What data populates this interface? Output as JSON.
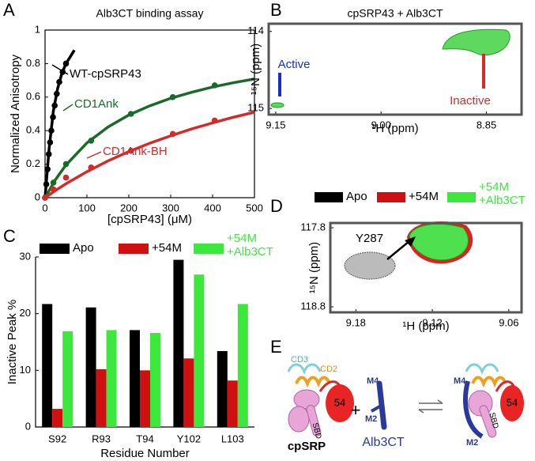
{
  "panel_labels": [
    "A",
    "B",
    "C",
    "D",
    "E"
  ],
  "chart_data": [
    {
      "type": "line",
      "title": "Alb3CT binding assay",
      "x_label": "[cpSRP43] (μM)",
      "y_label": "Normalized Anisotropy",
      "xlim": [
        0,
        500
      ],
      "xticks": [
        0,
        100,
        200,
        300,
        400,
        500
      ],
      "ylim": [
        0,
        1
      ],
      "yticks": [
        0,
        0.2,
        0.4,
        0.6,
        0.8,
        1
      ],
      "series": [
        {
          "name": "WT-cpSRP43",
          "color": "#000000",
          "x": [
            0,
            3,
            6,
            9,
            12,
            15,
            19,
            23,
            28,
            34,
            42,
            50
          ],
          "values": [
            0,
            0.08,
            0.17,
            0.26,
            0.33,
            0.4,
            0.48,
            0.55,
            0.62,
            0.69,
            0.75,
            0.8
          ],
          "fit_x": [
            0,
            10,
            20,
            30,
            40,
            50,
            60,
            70
          ],
          "fit_values": [
            0,
            0.3,
            0.52,
            0.65,
            0.74,
            0.8,
            0.84,
            0.88
          ]
        },
        {
          "name": "CD1Ank",
          "color": "#1a6b2a",
          "x": [
            0,
            20,
            50,
            110,
            205,
            305,
            405
          ],
          "values": [
            0,
            0.09,
            0.2,
            0.34,
            0.5,
            0.6,
            0.67
          ],
          "fit_x": [
            0,
            25,
            50,
            100,
            150,
            200,
            250,
            300,
            350,
            400,
            450,
            500
          ],
          "fit_values": [
            0,
            0.108,
            0.195,
            0.327,
            0.421,
            0.493,
            0.548,
            0.593,
            0.629,
            0.66,
            0.686,
            0.708
          ]
        },
        {
          "name": "CD1Ank-BH",
          "color": "#d42a2a",
          "x": [
            0,
            20,
            50,
            110,
            205,
            305,
            405
          ],
          "values": [
            0,
            0.05,
            0.12,
            0.18,
            0.28,
            0.38,
            0.46
          ],
          "fit_x": [
            0,
            25,
            50,
            100,
            150,
            200,
            250,
            300,
            350,
            400,
            450,
            500
          ],
          "fit_values": [
            0,
            0.043,
            0.083,
            0.155,
            0.219,
            0.275,
            0.325,
            0.369,
            0.41,
            0.446,
            0.48,
            0.51
          ]
        }
      ]
    },
    {
      "type": "contour",
      "title": "cpSRP43 + Alb3CT",
      "x_label": "¹H (ppm)",
      "y_label": "¹⁵N (ppm)",
      "xlim": [
        9.16,
        8.8
      ],
      "xticks": [
        9.15,
        {
          "value": 9,
          "label": "9.00"
        },
        8.85
      ],
      "ylim": [
        115.08,
        113.9
      ],
      "yticks": [
        114,
        115
      ],
      "annotations": [
        "Active",
        "Inactive"
      ],
      "annotation_colors": [
        "#1530c8",
        "#d42a2a"
      ]
    },
    {
      "type": "bar",
      "x_label": "Residue Number",
      "y_label": "Inactive Peak %",
      "categories": [
        "S92",
        "R93",
        "T94",
        "Y102",
        "L103"
      ],
      "ylim": [
        0,
        30
      ],
      "yticks": [
        0,
        10,
        20,
        30
      ],
      "series": [
        {
          "name": "Apo",
          "color": "#000000",
          "values": [
            21.7,
            21.1,
            17.1,
            29.5,
            13.4
          ]
        },
        {
          "name": "+54M",
          "color": "#d01010",
          "values": [
            3.2,
            10.2,
            10,
            12.1,
            8.2
          ]
        },
        {
          "name": "+54M\n+Alb3CT",
          "color": "#3de83d",
          "values": [
            16.9,
            17.1,
            16.6,
            26.9,
            21.7
          ]
        }
      ]
    },
    {
      "type": "contour",
      "x_label": "¹H (ppm)",
      "y_label": "¹⁵N (ppm)",
      "xlim": [
        9.2,
        9.05
      ],
      "xticks": [
        9.18,
        9.12,
        9.06
      ],
      "ylim": [
        118.87,
        117.74
      ],
      "yticks": [
        117.8,
        118.8
      ],
      "annotations": [
        "Y287"
      ],
      "annotation_colors": [
        "#000000"
      ],
      "series": [
        {
          "name": "Apo",
          "color": "#000000"
        },
        {
          "name": "+54M",
          "color": "#d01010"
        },
        {
          "name": "+54M\n+Alb3CT",
          "color": "#3de83d"
        }
      ]
    }
  ],
  "diagram": {
    "left": {
      "cd3": "CD3",
      "cd2": "CD2",
      "domain": "54",
      "sbd": "SBD",
      "name": "cpSRP"
    },
    "plus": "+",
    "middle": {
      "m4": "M4",
      "m2": "M2",
      "name": "Alb3CT"
    },
    "right": {
      "m4": "M4",
      "m2": "M2",
      "domain": "54",
      "sbd": "SBD"
    }
  }
}
